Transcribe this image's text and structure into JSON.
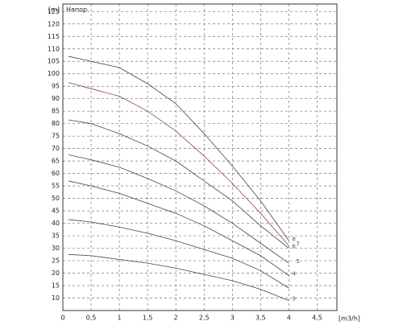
{
  "chart_data": {
    "type": "line",
    "y_label": "[m]",
    "title": "Напор",
    "x_label": "[m3/h]",
    "x": [
      0.1,
      0.5,
      1,
      1.5,
      2,
      2.5,
      3,
      3.5,
      4
    ],
    "series": [
      {
        "name": "3",
        "color": "#444444",
        "values": [
          27.5,
          27,
          25.5,
          24,
          22,
          19.5,
          17,
          13.5,
          9
        ]
      },
      {
        "color": "#444444",
        "values": [
          41.5,
          40.5,
          38.5,
          36,
          33,
          29.5,
          26,
          21,
          14
        ]
      },
      {
        "name": "4",
        "color": "#444444",
        "values": [
          57,
          55,
          52,
          48,
          44,
          39,
          33,
          27,
          19
        ]
      },
      {
        "name": "5",
        "color": "#444444",
        "values": [
          67.5,
          65.5,
          62.5,
          58,
          53,
          47,
          40,
          32,
          24
        ]
      },
      {
        "name": "6",
        "color": "#444444",
        "values": [
          81.5,
          80,
          76,
          71,
          65,
          57,
          49,
          39,
          30
        ]
      },
      {
        "name": "7",
        "color": "#8a4a4a",
        "values": [
          96.5,
          94,
          91,
          85,
          77,
          67,
          56,
          44,
          31
        ]
      },
      {
        "name": "8",
        "color": "#444444",
        "values": [
          107,
          105,
          102.5,
          96,
          88,
          76,
          63,
          49,
          33
        ]
      }
    ],
    "xlim": [
      0,
      4.85
    ],
    "ylim": [
      5,
      128
    ],
    "xticks": [
      0,
      {
        "value": 0.5,
        "label": "0,5"
      },
      1,
      {
        "value": 1.5,
        "label": "1,5"
      },
      2,
      {
        "value": 2.5,
        "label": "2,5"
      },
      3,
      {
        "value": 3.5,
        "label": "3,5"
      },
      4,
      {
        "value": 4.5,
        "label": "4,5"
      }
    ],
    "yticks": [
      10,
      15,
      20,
      25,
      30,
      35,
      40,
      45,
      50,
      55,
      60,
      65,
      70,
      75,
      80,
      85,
      90,
      95,
      100,
      105,
      110,
      115,
      120,
      125
    ],
    "grid": true
  }
}
